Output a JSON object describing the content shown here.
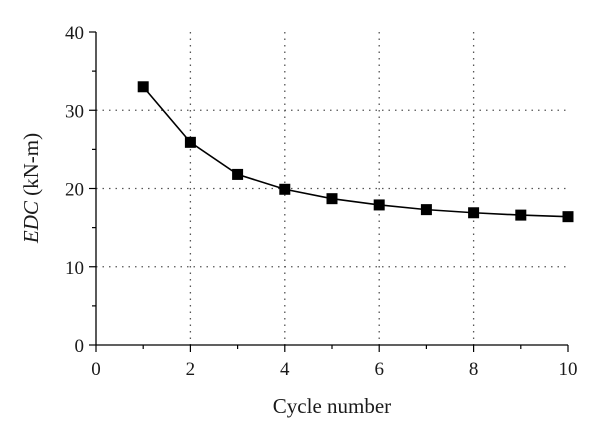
{
  "chart_data": {
    "type": "line",
    "xlabel": "Cycle number",
    "ylabel_italic": "EDC",
    "ylabel_unit": " (kN-m)",
    "xlim": [
      0,
      10
    ],
    "ylim": [
      0,
      40
    ],
    "x_ticks": [
      0,
      2,
      4,
      6,
      8,
      10
    ],
    "x_tick_labels": [
      "0",
      "2",
      "4",
      "6",
      "8",
      "10"
    ],
    "y_ticks": [
      0,
      10,
      20,
      30,
      40
    ],
    "y_tick_labels": [
      "0",
      "10",
      "20",
      "30",
      "40"
    ],
    "grid": true,
    "marker": "square",
    "color": "#000000",
    "series": [
      {
        "x": [
          1,
          2,
          3,
          4,
          5,
          6,
          7,
          8,
          9,
          10
        ],
        "values": [
          33.0,
          25.9,
          21.8,
          19.9,
          18.7,
          17.9,
          17.3,
          16.9,
          16.6,
          16.4
        ]
      }
    ]
  }
}
